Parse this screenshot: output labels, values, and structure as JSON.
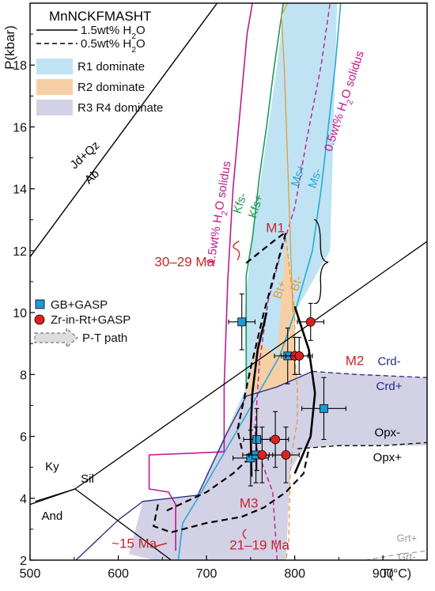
{
  "chart_data": {
    "type": "scatter",
    "title": "MnNCKFMASHT",
    "xlabel": "T(°C)",
    "ylabel": "P(kbar)",
    "xlim": [
      500,
      950
    ],
    "ylim": [
      2,
      20
    ],
    "x_ticks": [
      500,
      600,
      700,
      800,
      900
    ],
    "x_tick_labels": [
      "500",
      "600",
      "700",
      "800",
      "900"
    ],
    "y_ticks": [
      2,
      4,
      6,
      8,
      10,
      12,
      14,
      16,
      18
    ],
    "legend": {
      "title": "MnNCKFMASHT",
      "line_items": [
        {
          "style": "solid",
          "label_main": "1.5wt% H",
          "label_sub": "2",
          "label_tail": "O"
        },
        {
          "style": "dashed",
          "label_main": "0.5wt% H",
          "label_sub": "2",
          "label_tail": "O"
        }
      ],
      "fill_items": [
        {
          "label": "R1 dominate",
          "color": "#bfe3f3"
        },
        {
          "label": "R2 dominate",
          "color": "#f6cfa5"
        },
        {
          "label": "R3 R4 dominate",
          "color": "#d3d1e6"
        }
      ],
      "marker_items": [
        {
          "shape": "square",
          "label": "GB+GASP",
          "color": "#1e9ad6"
        },
        {
          "shape": "circle",
          "label": "Zr-in-Rt+GASP",
          "color": "#e02020"
        }
      ],
      "arrow_item": {
        "label": "P-T path"
      }
    },
    "regions": [
      {
        "name": "R1",
        "color": "#bfe3f3",
        "points": [
          [
            788,
            20
          ],
          [
            848,
            20
          ],
          [
            840,
            12
          ],
          [
            800,
            10
          ],
          [
            780,
            8.6
          ],
          [
            743,
            6.6
          ],
          [
            710,
            5
          ],
          [
            690,
            4
          ],
          [
            700,
            4.8
          ],
          [
            720,
            6
          ],
          [
            745,
            7.6
          ],
          [
            743,
            10
          ],
          [
            750,
            12
          ],
          [
            760,
            14
          ],
          [
            770,
            16
          ],
          [
            780,
            18
          ]
        ]
      },
      {
        "name": "R2",
        "color": "#f6cfa5",
        "points": [
          [
            790,
            12.4
          ],
          [
            800,
            10
          ],
          [
            800,
            8.6
          ],
          [
            803,
            7.5
          ],
          [
            803,
            6.5
          ],
          [
            798,
            5.7
          ],
          [
            795,
            4.9
          ],
          [
            790,
            2
          ],
          [
            770,
            2
          ],
          [
            765,
            4.3
          ],
          [
            757,
            5.9
          ],
          [
            745,
            7.3
          ],
          [
            757,
            9.1
          ],
          [
            780,
            8.6
          ]
        ]
      },
      {
        "name": "R3R4",
        "color": "#d3d1e6",
        "points": [
          [
            820,
            8.1
          ],
          [
            950,
            7.9
          ],
          [
            950,
            5.7
          ],
          [
            840,
            5.7
          ],
          [
            810,
            5.6
          ],
          [
            795,
            4.9
          ],
          [
            790,
            2
          ],
          [
            640,
            2
          ],
          [
            612,
            2.2
          ],
          [
            628,
            3.9
          ],
          [
            690,
            4.1
          ],
          [
            723,
            6.1
          ],
          [
            745,
            7.3
          ],
          [
            780,
            7.6
          ]
        ]
      }
    ],
    "lines": [
      {
        "name": "Jd+Qz=Ab",
        "color": "#000",
        "dash": "",
        "width": 1.4,
        "points": [
          [
            500,
            11.8
          ],
          [
            712,
            20
          ]
        ]
      },
      {
        "name": "Kfs",
        "color": "#1f9a54",
        "dash": "",
        "width": 1.6,
        "points": [
          [
            745,
            7.6
          ],
          [
            745,
            11.2
          ],
          [
            752,
            12.4
          ],
          [
            760,
            14.4
          ],
          [
            768,
            16
          ],
          [
            776,
            17.8
          ],
          [
            787,
            20
          ]
        ]
      },
      {
        "name": "Ms",
        "color": "#29a8d8",
        "dash": "",
        "width": 1.6,
        "points": [
          [
            668,
            2
          ],
          [
            673,
            3.2
          ],
          [
            690,
            4
          ],
          [
            743,
            6.6
          ],
          [
            783,
            8.6
          ],
          [
            800,
            10
          ],
          [
            820,
            12
          ],
          [
            830,
            14
          ],
          [
            838,
            16
          ],
          [
            846,
            18
          ],
          [
            852,
            20
          ]
        ]
      },
      {
        "name": "1.5wt% H2O solidus",
        "color": "#c0198e",
        "dash": "",
        "width": 1.6,
        "points": [
          [
            665,
            2.3
          ],
          [
            665,
            3.8
          ],
          [
            657,
            4.2
          ],
          [
            635,
            4.3
          ],
          [
            635,
            5.4
          ],
          [
            720,
            5.5
          ],
          [
            720,
            7.6
          ],
          [
            724,
            11
          ],
          [
            730,
            14
          ],
          [
            738,
            16.5
          ],
          [
            746,
            19
          ],
          [
            752,
            20
          ]
        ]
      },
      {
        "name": "0.5wt% H2O solidus",
        "color": "#c0198e",
        "dash": "6,4",
        "width": 1.4,
        "points": [
          [
            780,
            2
          ],
          [
            775,
            4.2
          ],
          [
            757,
            5.6
          ],
          [
            755,
            6.2
          ],
          [
            760,
            8.4
          ],
          [
            770,
            10.4
          ],
          [
            785,
            12
          ],
          [
            800,
            13.4
          ],
          [
            815,
            15.8
          ],
          [
            830,
            18
          ],
          [
            840,
            20
          ]
        ]
      },
      {
        "name": "R2 orange solid",
        "color": "#e59a3a",
        "dash": "",
        "width": 1.3,
        "points": [
          [
            792,
            20
          ],
          [
            785,
            19.6
          ],
          [
            788,
            18
          ],
          [
            798,
            10
          ]
        ]
      },
      {
        "name": "Bt orange dashed",
        "color": "#e59a3a",
        "dash": "6,4",
        "width": 1.3,
        "points": [
          [
            790,
            12.4
          ],
          [
            800,
            10
          ],
          [
            800,
            8.6
          ],
          [
            803,
            7.5
          ],
          [
            803,
            6.5
          ],
          [
            798,
            5.7
          ],
          [
            795,
            4.9
          ],
          [
            793,
            2.5
          ],
          [
            790,
            2
          ]
        ]
      },
      {
        "name": "Crd boundary",
        "color": "#262880",
        "dash": "",
        "width": 1.3,
        "points": [
          [
            552,
            2
          ],
          [
            600,
            3.3
          ],
          [
            628,
            3.9
          ],
          [
            690,
            4.1
          ],
          [
            723,
            6.1
          ],
          [
            745,
            7.3
          ],
          [
            780,
            7.6
          ],
          [
            820,
            8.1
          ]
        ]
      },
      {
        "name": "Crd boundary dashed",
        "color": "#262880",
        "dash": "6,4",
        "width": 1.3,
        "points": [
          [
            820,
            8.1
          ],
          [
            870,
            8.0
          ],
          [
            950,
            7.9
          ]
        ]
      },
      {
        "name": "Ky=Sil",
        "color": "#000",
        "dash": "",
        "width": 1.3,
        "points": [
          [
            500,
            3.8
          ],
          [
            551,
            4.3
          ],
          [
            950,
            12.3
          ]
        ]
      },
      {
        "name": "And=Sil",
        "color": "#000",
        "dash": "",
        "width": 1.3,
        "points": [
          [
            551,
            4.3
          ],
          [
            660,
            2
          ]
        ]
      },
      {
        "name": "And=Sil2",
        "color": "#000",
        "dash": "",
        "width": 1.3,
        "points": [
          [
            551,
            4.3
          ],
          [
            506,
            3.9
          ]
        ]
      },
      {
        "name": "Opx dashed",
        "color": "#000",
        "dash": "6,4",
        "width": 1.3,
        "points": [
          [
            803,
            5.6
          ],
          [
            850,
            5.7
          ],
          [
            900,
            5.7
          ],
          [
            950,
            5.8
          ]
        ]
      },
      {
        "name": "Grt dashed",
        "color": "#999",
        "dash": "6,4",
        "width": 1.2,
        "points": [
          [
            880,
            2
          ],
          [
            920,
            2.2
          ],
          [
            950,
            2.3
          ]
        ]
      },
      {
        "name": "M1 path",
        "color": "#000",
        "dash": "8,5",
        "width": 2.2,
        "points": [
          [
            745,
            11.6
          ],
          [
            780,
            12.4
          ],
          [
            790,
            12.6
          ],
          [
            765,
            10
          ],
          [
            750,
            8.2
          ],
          [
            735,
            6.2
          ],
          [
            740,
            5.6
          ]
        ]
      },
      {
        "name": "M2 path",
        "color": "#000",
        "dash": "",
        "width": 2.6,
        "points": [
          [
            768,
            10
          ],
          [
            758,
            8.8
          ],
          [
            752,
            7.4
          ],
          [
            750,
            6.2
          ],
          [
            751,
            4.7
          ]
        ]
      },
      {
        "name": "M2 path right",
        "color": "#000",
        "dash": "",
        "width": 2.6,
        "points": [
          [
            800,
            10.2
          ],
          [
            816,
            8.8
          ],
          [
            823,
            7.4
          ],
          [
            818,
            6.0
          ],
          [
            800,
            4.8
          ]
        ]
      },
      {
        "name": "M3 path",
        "color": "#000",
        "dash": "8,5",
        "width": 2.2,
        "points": [
          [
            645,
            3.8
          ],
          [
            640,
            3.1
          ],
          [
            660,
            2.9
          ],
          [
            700,
            3.2
          ],
          [
            740,
            3.4
          ],
          [
            765,
            3.7
          ],
          [
            790,
            4.2
          ],
          [
            810,
            4.8
          ],
          [
            816,
            5.6
          ]
        ]
      },
      {
        "name": "M3 path left",
        "color": "#000",
        "dash": "8,5",
        "width": 2.2,
        "points": [
          [
            655,
            3.6
          ],
          [
            700,
            4.2
          ],
          [
            730,
            4.8
          ],
          [
            745,
            5.2
          ]
        ]
      }
    ],
    "series": [
      {
        "name": "GB+GASP",
        "marker": "square",
        "color": "#1e9ad6",
        "points": [
          {
            "x": 740,
            "y": 9.7,
            "xerr": 15,
            "yerr": 0.9
          },
          {
            "x": 792,
            "y": 8.6,
            "xerr": 15,
            "yerr": 0.9
          },
          {
            "x": 833,
            "y": 6.9,
            "xerr": 25,
            "yerr": 1.0
          },
          {
            "x": 757,
            "y": 5.9,
            "xerr": 15,
            "yerr": 1.0
          },
          {
            "x": 750,
            "y": 5.3,
            "xerr": 20,
            "yerr": 0.9
          },
          {
            "x": 756,
            "y": 5.4,
            "xerr": 15,
            "yerr": 0.9
          }
        ]
      },
      {
        "name": "Zr-in-Rt+GASP",
        "marker": "circle",
        "color": "#e02020",
        "points": [
          {
            "x": 818,
            "y": 9.7,
            "xerr": 15,
            "yerr": 0.6
          },
          {
            "x": 800,
            "y": 8.6,
            "xerr": 15,
            "yerr": 0.6
          },
          {
            "x": 805,
            "y": 8.6,
            "xerr": 15,
            "yerr": 0.6
          },
          {
            "x": 778,
            "y": 5.9,
            "xerr": 15,
            "yerr": 0.9
          },
          {
            "x": 763,
            "y": 5.4,
            "xerr": 15,
            "yerr": 0.9
          },
          {
            "x": 790,
            "y": 5.4,
            "xerr": 15,
            "yerr": 0.9
          }
        ]
      }
    ],
    "annotations": [
      {
        "text": "Jd+Qz",
        "x": 565,
        "y": 15.0,
        "color": "#000",
        "rotate": -42,
        "size": 15
      },
      {
        "text": "Ab",
        "x": 573,
        "y": 14.3,
        "color": "#000",
        "rotate": -42,
        "size": 15
      },
      {
        "text": "Kfs-",
        "x": 742,
        "y": 13.5,
        "color": "#1f9a54",
        "rotate": -72,
        "size": 15
      },
      {
        "text": "Kfs+",
        "x": 760,
        "y": 13.4,
        "color": "#1f9a54",
        "rotate": -72,
        "size": 15
      },
      {
        "text": "Ms+",
        "x": 808,
        "y": 14.4,
        "color": "#29a8d8",
        "rotate": -72,
        "size": 15
      },
      {
        "text": "Ms-",
        "x": 827,
        "y": 14.3,
        "color": "#29a8d8",
        "rotate": -72,
        "size": 15
      },
      {
        "text": "Bt+",
        "x": 787,
        "y": 10.7,
        "color": "#e59a3a",
        "rotate": -72,
        "size": 15
      },
      {
        "text": "Bt-",
        "x": 806,
        "y": 10.9,
        "color": "#e59a3a",
        "rotate": -72,
        "size": 15
      },
      {
        "text": "Crd-",
        "x": 907,
        "y": 8.3,
        "color": "#262880",
        "rotate": 0,
        "size": 15
      },
      {
        "text": "Crd+",
        "x": 907,
        "y": 7.5,
        "color": "#262880",
        "rotate": 0,
        "size": 15
      },
      {
        "text": "Opx-",
        "x": 905,
        "y": 6.0,
        "color": "#000",
        "rotate": 0,
        "size": 15
      },
      {
        "text": "Opx+",
        "x": 905,
        "y": 5.2,
        "color": "#000",
        "rotate": 0,
        "size": 15
      },
      {
        "text": "Grt+",
        "x": 927,
        "y": 2.6,
        "color": "#999",
        "rotate": 0,
        "size": 13
      },
      {
        "text": "Grt-",
        "x": 927,
        "y": 2.0,
        "color": "#999",
        "rotate": 0,
        "size": 13
      },
      {
        "text": "Ky",
        "x": 525,
        "y": 4.9,
        "color": "#000",
        "rotate": 0,
        "size": 15
      },
      {
        "text": "Sil",
        "x": 565,
        "y": 4.5,
        "color": "#000",
        "rotate": 0,
        "size": 15
      },
      {
        "text": "And",
        "x": 525,
        "y": 3.3,
        "color": "#000",
        "rotate": 0,
        "size": 15
      },
      {
        "text": "M1",
        "x": 778,
        "y": 12.6,
        "color": "#c8252a",
        "rotate": 0,
        "size": 17
      },
      {
        "text": "30–29 Ma",
        "x": 675,
        "y": 11.5,
        "color": "#c8252a",
        "rotate": 0,
        "size": 17
      },
      {
        "text": "M2",
        "x": 868,
        "y": 8.3,
        "color": "#c8252a",
        "rotate": 0,
        "size": 17
      },
      {
        "text": "M3",
        "x": 748,
        "y": 3.7,
        "color": "#c8252a",
        "rotate": 0,
        "size": 17
      },
      {
        "text": "21–19 Ma",
        "x": 760,
        "y": 2.35,
        "color": "#c8252a",
        "rotate": 0,
        "size": 17
      },
      {
        "text": "~15 Ma",
        "x": 618,
        "y": 2.4,
        "color": "#c8252a",
        "rotate": 0,
        "size": 17
      }
    ],
    "rotated_labels": [
      {
        "text_main": "1.5wt% H",
        "text_sub": "2",
        "text_tail": "O solidus",
        "x": 718,
        "y": 13.2,
        "color": "#c0198e",
        "rotate": -81
      },
      {
        "text_main": "0.5wt% H",
        "text_sub": "2",
        "text_tail": "O solidus",
        "x": 860,
        "y": 16.8,
        "color": "#c0198e",
        "rotate": -72
      }
    ]
  }
}
